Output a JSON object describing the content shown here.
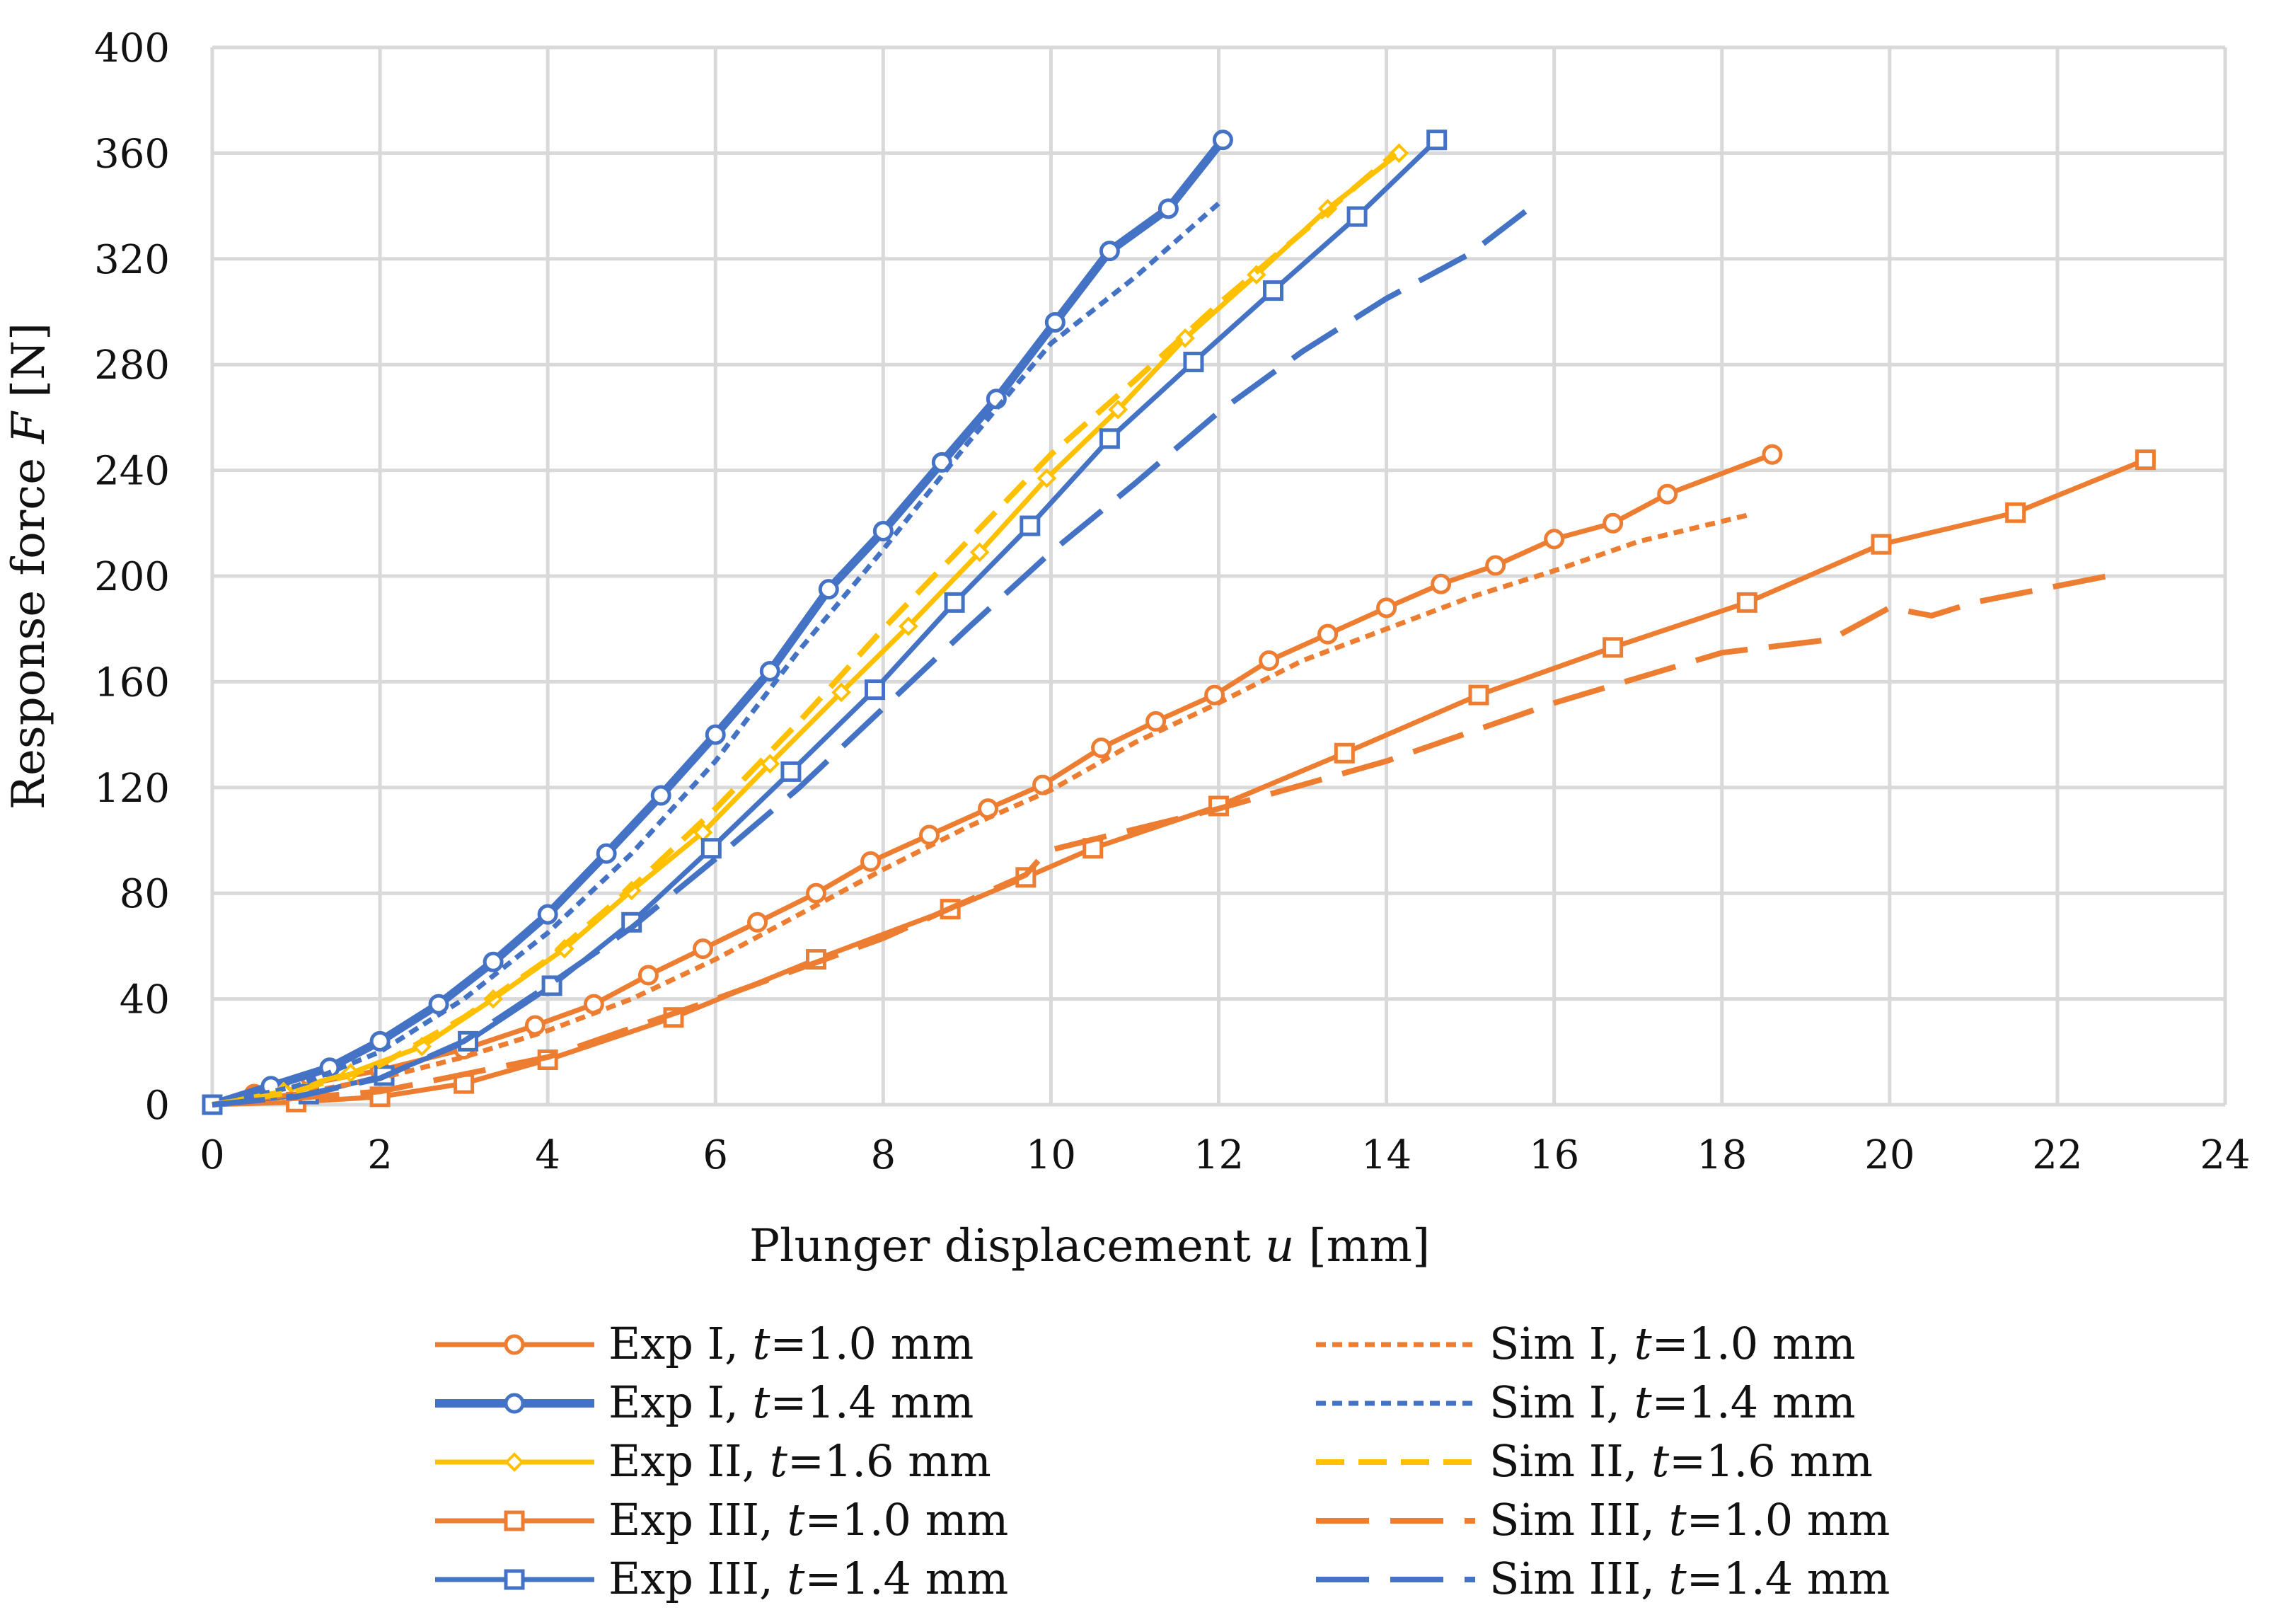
{
  "chart_data": {
    "type": "line",
    "title": "",
    "xlabel": "Plunger displacement u [mm]",
    "ylabel": "Response force F [N]",
    "xlabel_parts": [
      "Plunger displacement ",
      "u",
      " [mm]"
    ],
    "ylabel_parts": [
      "Response force ",
      "F",
      " [N]"
    ],
    "xlim": [
      0,
      24
    ],
    "ylim": [
      0,
      400
    ],
    "xticks": [
      "0",
      "2",
      "4",
      "6",
      "8",
      "10",
      "12",
      "14",
      "16",
      "18",
      "20",
      "22",
      "24"
    ],
    "yticks": [
      "0",
      "40",
      "80",
      "120",
      "160",
      "200",
      "240",
      "280",
      "320",
      "360",
      "400"
    ],
    "grid": true,
    "legend_position": "bottom",
    "series": [
      {
        "name": "Exp I, t=1.0 mm",
        "label_parts": [
          "Exp I, ",
          "t",
          "=1.0 mm"
        ],
        "color": "#ED7D31",
        "style": "solid",
        "marker": "circle",
        "x": [
          0,
          0.5,
          1,
          2,
          3,
          3.85,
          4.55,
          5.2,
          5.85,
          6.5,
          7.2,
          7.85,
          8.55,
          9.25,
          9.9,
          10.6,
          11.25,
          11.95,
          12.6,
          13.3,
          14,
          14.65,
          15.3,
          16,
          16.7,
          17.35,
          18.6
        ],
        "y": [
          0,
          4,
          7,
          13,
          21,
          30,
          38,
          49,
          59,
          69,
          80,
          92,
          102,
          112,
          121,
          135,
          145,
          155,
          168,
          178,
          188,
          197,
          204,
          214,
          220,
          231,
          246
        ]
      },
      {
        "name": "Exp I, t=1.4 mm",
        "label_parts": [
          "Exp I, ",
          "t",
          "=1.4 mm"
        ],
        "color": "#4472C4",
        "style": "solid",
        "marker": "circle",
        "x": [
          0,
          0.7,
          1.4,
          2,
          2.7,
          3.35,
          4,
          4.7,
          5.35,
          6,
          6.65,
          7.35,
          8,
          8.7,
          9.35,
          10.05,
          10.7,
          11.4,
          12.05
        ],
        "y": [
          0,
          7,
          14,
          24,
          38,
          54,
          72,
          95,
          117,
          140,
          164,
          195,
          217,
          243,
          267,
          296,
          323,
          339,
          365
        ]
      },
      {
        "name": "Exp II, t=1.6 mm",
        "label_parts": [
          "Exp II, ",
          "t",
          "=1.6 mm"
        ],
        "color": "#FFC000",
        "style": "solid",
        "marker": "diamond",
        "x": [
          0,
          0.85,
          1.65,
          2.5,
          3.35,
          4.2,
          5,
          5.85,
          6.65,
          7.5,
          8.3,
          9.15,
          9.95,
          10.8,
          11.6,
          12.45,
          13.3,
          14.15
        ],
        "y": [
          0,
          5,
          12,
          22,
          40,
          59,
          81,
          103,
          129,
          156,
          181,
          209,
          237,
          263,
          290,
          314,
          339,
          360
        ]
      },
      {
        "name": "Exp III, t=1.0 mm",
        "label_parts": [
          "Exp III, ",
          "t",
          "=1.0 mm"
        ],
        "color": "#ED7D31",
        "style": "solid",
        "marker": "square",
        "x": [
          0,
          1,
          2,
          3,
          4,
          5.5,
          7.2,
          8.8,
          9.7,
          10.5,
          12,
          13.5,
          15.1,
          16.7,
          18.3,
          19.9,
          21.5,
          23.05
        ],
        "y": [
          0,
          1,
          3,
          8,
          17,
          33,
          55,
          74,
          86,
          97,
          113,
          133,
          155,
          173,
          190,
          212,
          224,
          244
        ]
      },
      {
        "name": "Exp III, t=1.4 mm",
        "label_parts": [
          "Exp III, ",
          "t",
          "=1.4 mm"
        ],
        "color": "#4472C4",
        "style": "solid",
        "marker": "square",
        "x": [
          0,
          1.15,
          2.05,
          3.05,
          4.05,
          5,
          5.95,
          6.9,
          7.9,
          8.85,
          9.75,
          10.7,
          11.7,
          12.65,
          13.65,
          14.6
        ],
        "y": [
          0,
          4,
          11,
          24,
          45,
          69,
          97,
          126,
          157,
          190,
          219,
          252,
          281,
          308,
          336,
          365
        ]
      },
      {
        "name": "Sim I, t=1.0 mm",
        "label_parts": [
          "Sim I, ",
          "t",
          "=1.0 mm"
        ],
        "color": "#ED7D31",
        "style": "dotted",
        "marker": "none",
        "x": [
          0,
          1,
          2,
          3,
          4,
          5,
          6,
          7,
          8,
          9,
          10,
          11,
          12,
          13,
          14,
          15,
          16,
          17,
          18.3
        ],
        "y": [
          0,
          4,
          10,
          18,
          28,
          40,
          55,
          72,
          89,
          105,
          119,
          137,
          152,
          168,
          180,
          192,
          202,
          213,
          223
        ]
      },
      {
        "name": "Sim I, t=1.4 mm",
        "label_parts": [
          "Sim I, ",
          "t",
          "=1.4 mm"
        ],
        "color": "#4472C4",
        "style": "dotted",
        "marker": "none",
        "x": [
          0,
          1,
          2,
          3,
          4,
          5,
          6,
          7,
          8,
          9,
          10,
          11,
          12
        ],
        "y": [
          0,
          7,
          20,
          40,
          65,
          95,
          130,
          172,
          210,
          250,
          288,
          313,
          341
        ]
      },
      {
        "name": "Sim II, t=1.6 mm",
        "label_parts": [
          "Sim II, ",
          "t",
          "=1.6 mm"
        ],
        "color": "#FFC000",
        "style": "dashed",
        "marker": "none",
        "x": [
          0,
          1,
          2,
          3,
          4,
          5,
          6,
          7,
          8,
          9,
          10,
          11,
          12,
          13,
          14.1
        ],
        "y": [
          0,
          5,
          15,
          33,
          55,
          82,
          112,
          145,
          180,
          213,
          246,
          274,
          303,
          330,
          360
        ]
      },
      {
        "name": "Sim III, t=1.0 mm",
        "label_parts": [
          "Sim III, ",
          "t",
          "=1.0 mm"
        ],
        "color": "#ED7D31",
        "style": "longdash",
        "marker": "none",
        "x": [
          0,
          2,
          4,
          6,
          8,
          9.7,
          9.95,
          10.2,
          12,
          14,
          16,
          18,
          19.3,
          20,
          20.5,
          21,
          22.6
        ],
        "y": [
          0,
          5,
          18,
          40,
          63,
          87,
          96,
          98,
          112,
          130,
          152,
          171,
          176,
          188,
          185,
          190,
          200
        ]
      },
      {
        "name": "Sim III, t=1.4 mm",
        "label_parts": [
          "Sim III, ",
          "t",
          "=1.4 mm"
        ],
        "color": "#4472C4",
        "style": "longdash",
        "marker": "none",
        "x": [
          0,
          1,
          2,
          3,
          4,
          5,
          6,
          7,
          8,
          9,
          10,
          11,
          12,
          13,
          14,
          15,
          15.7
        ],
        "y": [
          0,
          3,
          10,
          24,
          45,
          67,
          93,
          120,
          150,
          180,
          209,
          235,
          262,
          285,
          305,
          322,
          339
        ]
      }
    ]
  }
}
